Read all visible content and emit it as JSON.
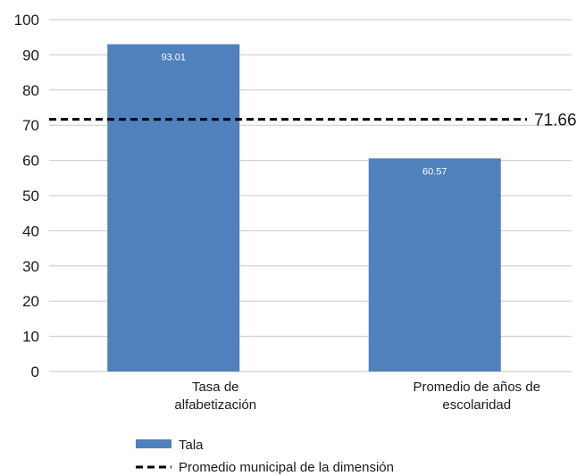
{
  "chart_data": {
    "type": "bar",
    "categories": [
      [
        "Tasa de",
        "alfabetización"
      ],
      [
        "Promedio de años de",
        "escolaridad"
      ]
    ],
    "series": [
      {
        "name": "Tala",
        "values": [
          93.01,
          60.57
        ],
        "data_labels": [
          "93.01",
          "60.57"
        ],
        "color": "#4f81bd"
      }
    ],
    "reference_line": {
      "name": "Promedio municipal de la dimensión",
      "value": 71.66,
      "label": "71.66",
      "style": "dashed",
      "color": "#000000"
    },
    "ylim": [
      0,
      100
    ],
    "yticks": [
      "0",
      "10",
      "20",
      "30",
      "40",
      "50",
      "60",
      "70",
      "80",
      "90",
      "100"
    ],
    "grid": true,
    "legend_position": "bottom"
  }
}
